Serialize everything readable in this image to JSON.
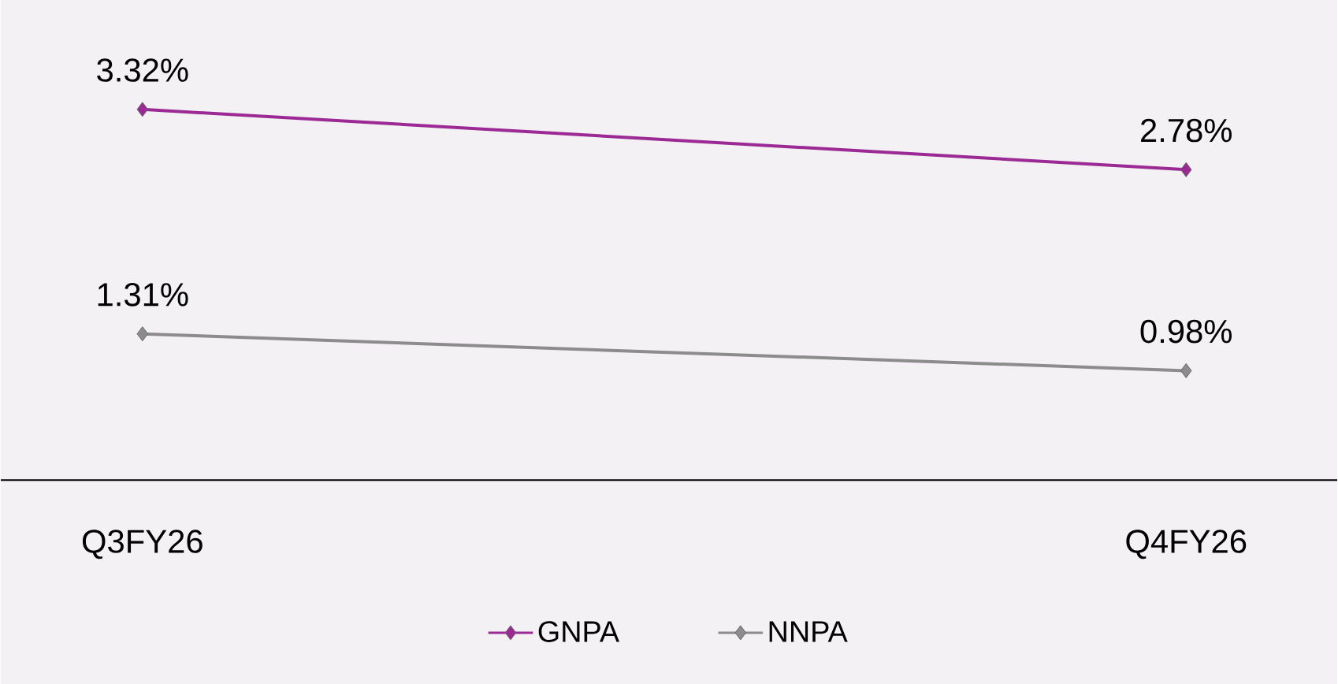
{
  "chart_data": {
    "type": "line",
    "categories": [
      "Q3FY26",
      "Q4FY26"
    ],
    "series": [
      {
        "name": "GNPA",
        "color": "#9b2a95",
        "values": [
          3.32,
          2.78
        ],
        "value_labels": [
          "3.32%",
          "2.78%"
        ]
      },
      {
        "name": "NNPA",
        "color": "#8c8c8c",
        "values": [
          1.31,
          0.98
        ],
        "value_labels": [
          "1.31%",
          "0.98%"
        ]
      }
    ],
    "ylim": [
      0,
      4.3
    ],
    "tick_labels": "x",
    "legend": "bottom",
    "marker": "diamond",
    "line_style": "solid",
    "grid": false
  }
}
